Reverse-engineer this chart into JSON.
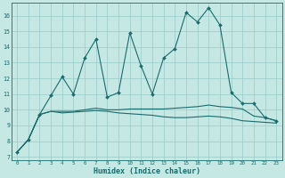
{
  "xlabel": "Humidex (Indice chaleur)",
  "xlim": [
    -0.5,
    23.5
  ],
  "ylim": [
    6.8,
    16.8
  ],
  "yticks": [
    7,
    8,
    9,
    10,
    11,
    12,
    13,
    14,
    15,
    16
  ],
  "xticks": [
    0,
    1,
    2,
    3,
    4,
    5,
    6,
    7,
    8,
    9,
    10,
    11,
    12,
    13,
    14,
    15,
    16,
    17,
    18,
    19,
    20,
    21,
    22,
    23
  ],
  "bg_color": "#c5e8e5",
  "grid_color": "#9fcfcc",
  "line_color": "#1a6b6b",
  "line1_x": [
    0,
    1,
    2,
    3,
    4,
    5,
    6,
    7,
    8,
    9,
    10,
    11,
    12,
    13,
    14,
    15,
    16,
    17,
    18,
    19,
    20,
    21,
    22,
    23
  ],
  "line1_y": [
    7.3,
    8.1,
    9.7,
    9.9,
    9.9,
    9.9,
    10.0,
    10.1,
    10.0,
    10.0,
    10.05,
    10.05,
    10.05,
    10.05,
    10.1,
    10.15,
    10.2,
    10.3,
    10.2,
    10.15,
    10.05,
    9.6,
    9.5,
    9.3
  ],
  "line2_x": [
    0,
    1,
    2,
    3,
    4,
    5,
    6,
    7,
    8,
    9,
    10,
    11,
    12,
    13,
    14,
    15,
    16,
    17,
    18,
    19,
    20,
    21,
    22,
    23
  ],
  "line2_y": [
    7.3,
    8.1,
    9.7,
    9.9,
    9.8,
    9.85,
    9.9,
    9.95,
    9.9,
    9.8,
    9.75,
    9.7,
    9.65,
    9.55,
    9.5,
    9.5,
    9.55,
    9.6,
    9.55,
    9.45,
    9.3,
    9.25,
    9.2,
    9.15
  ],
  "line3_x": [
    0,
    1,
    2,
    3,
    4,
    5,
    6,
    7,
    8,
    9,
    10,
    11,
    12,
    13,
    14,
    15,
    16,
    17,
    18,
    19,
    20,
    21,
    22,
    23
  ],
  "line3_y": [
    7.3,
    8.1,
    9.7,
    10.9,
    12.1,
    11.0,
    13.3,
    14.5,
    10.8,
    11.1,
    14.9,
    12.8,
    11.0,
    13.3,
    13.9,
    16.2,
    15.6,
    16.5,
    15.4,
    11.1,
    10.4,
    10.4,
    9.5,
    9.3
  ]
}
